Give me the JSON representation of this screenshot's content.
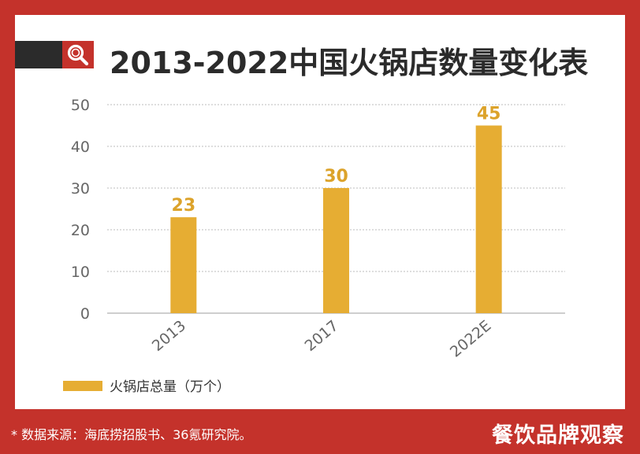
{
  "title": "2013-2022中国火锅店数量变化表",
  "legend": {
    "label": "火锅店总量（万个）",
    "color": "#e6ad33"
  },
  "footer": {
    "note": "* 数据来源：海底捞招股书、36氪研究院。",
    "brand": "餐饮品牌观察"
  },
  "colors": {
    "frame": "#c4322b",
    "bar": "#e6ad33",
    "label": "#dca32b",
    "title_block": "#2b2b2b"
  },
  "chart_data": {
    "type": "bar",
    "title": "2013-2022中国火锅店数量变化表",
    "categories": [
      "2013",
      "2017",
      "2022E"
    ],
    "series": [
      {
        "name": "火锅店总量（万个）",
        "values": [
          23,
          30,
          45
        ]
      }
    ],
    "ylim": [
      0,
      50
    ],
    "yticks": [
      "0",
      "10",
      "20",
      "30",
      "40",
      "50"
    ],
    "grid": true,
    "legend_position": "bottom-left"
  }
}
